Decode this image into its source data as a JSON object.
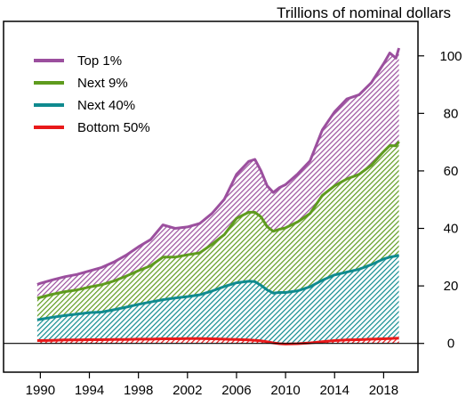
{
  "chart_data": {
    "type": "area",
    "title": "",
    "units_label": "Trillions of nominal dollars",
    "xlabel": "",
    "ylabel": "",
    "xlim": [
      1987.0,
      2020.8
    ],
    "ylim": [
      -10,
      112
    ],
    "stacked": true,
    "x_ticks": [
      1990,
      1994,
      1998,
      2002,
      2006,
      2010,
      2014,
      2018
    ],
    "x_tick_labels": [
      "1990",
      "1994",
      "1998",
      "2002",
      "2006",
      "2010",
      "2014",
      "2018"
    ],
    "y_ticks": [
      0,
      20,
      40,
      60,
      80,
      100
    ],
    "y_tick_labels": [
      "0",
      "20",
      "40",
      "60",
      "80",
      "100"
    ],
    "legend_position": "top-left",
    "grid": false,
    "x": [
      1989.75,
      1990,
      1991,
      1992,
      1993,
      1994,
      1995,
      1996,
      1997,
      1998,
      1999,
      2000,
      2001,
      2002,
      2003,
      2004,
      2005,
      2006,
      2007,
      2007.5,
      2008,
      2008.5,
      2009,
      2009.5,
      2010,
      2011,
      2012,
      2013,
      2014,
      2015,
      2016,
      2017,
      2018,
      2018.5,
      2019,
      2019.25
    ],
    "series": [
      {
        "name": "Bottom 50%",
        "color": "#e8191a",
        "values": [
          1.0,
          1.0,
          1.1,
          1.2,
          1.2,
          1.3,
          1.3,
          1.4,
          1.4,
          1.5,
          1.5,
          1.6,
          1.6,
          1.7,
          1.7,
          1.6,
          1.5,
          1.4,
          1.2,
          1.1,
          0.9,
          0.6,
          0.2,
          -0.1,
          -0.2,
          -0.1,
          0.2,
          0.6,
          1.0,
          1.2,
          1.3,
          1.5,
          1.6,
          1.7,
          1.8,
          1.8
        ]
      },
      {
        "name": "Next 40%",
        "color": "#0f8a8f",
        "values": [
          7.2,
          7.4,
          8.0,
          8.5,
          9.0,
          9.4,
          9.6,
          10.3,
          11.2,
          12.1,
          12.9,
          13.6,
          14.2,
          14.6,
          15.2,
          16.6,
          18.3,
          19.7,
          20.4,
          20.4,
          19.3,
          18.0,
          17.3,
          17.8,
          17.9,
          18.4,
          19.5,
          21.4,
          22.8,
          23.6,
          24.5,
          25.9,
          27.8,
          28.3,
          28.6,
          28.9
        ]
      },
      {
        "name": "Next 9%",
        "color": "#5e9b1e",
        "values": [
          7.5,
          7.6,
          8.0,
          8.3,
          8.4,
          8.9,
          9.5,
          10.0,
          10.8,
          11.7,
          12.6,
          14.8,
          14.2,
          14.5,
          14.6,
          16.3,
          18.0,
          22.4,
          24.0,
          24.1,
          23.8,
          22.0,
          21.5,
          22.0,
          22.5,
          24.0,
          25.5,
          29.5,
          31.0,
          32.4,
          33.0,
          34.6,
          37.3,
          38.8,
          38.3,
          39.5
        ]
      },
      {
        "name": "Top 1%",
        "color": "#9b4f9e",
        "values": [
          4.8,
          4.9,
          5.0,
          5.2,
          5.4,
          5.6,
          6.0,
          6.6,
          7.3,
          8.3,
          9.1,
          11.2,
          10.0,
          9.7,
          10.2,
          10.7,
          12.3,
          15.3,
          17.7,
          18.4,
          16.0,
          14.2,
          13.5,
          14.5,
          15.0,
          16.7,
          18.3,
          22.8,
          25.7,
          27.8,
          27.7,
          28.7,
          30.6,
          32.2,
          30.5,
          32.5
        ]
      }
    ]
  }
}
